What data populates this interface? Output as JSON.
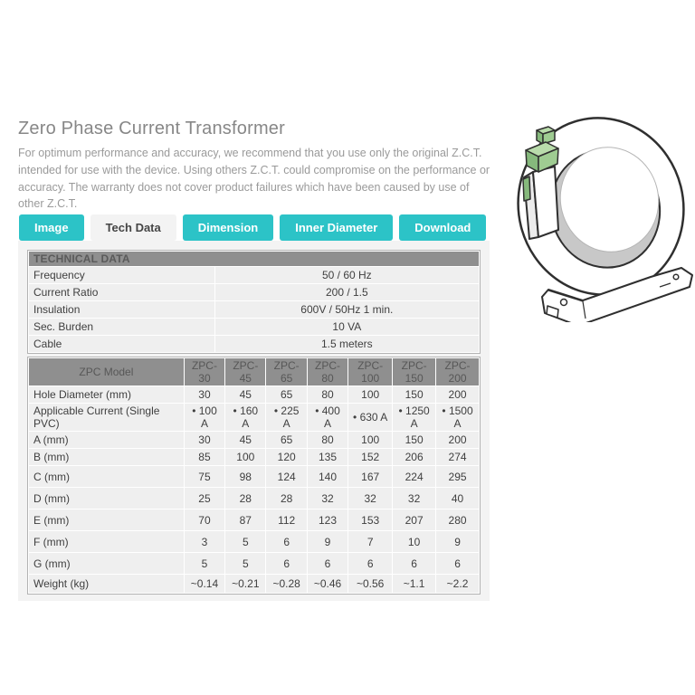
{
  "page": {
    "title": "Zero Phase Current Transformer",
    "description": "For optimum performance and accuracy, we recommend that you use only the original Z.C.T. intended for use with the device. Using others Z.C.T. could compromise on the performance or accuracy. The warranty does not cover product failures which have been caused by use of other Z.C.T."
  },
  "tabs": [
    {
      "label": "Image",
      "active": false
    },
    {
      "label": "Tech Data",
      "active": true
    },
    {
      "label": "Dimension",
      "active": false
    },
    {
      "label": "Inner Diameter",
      "active": false
    },
    {
      "label": "Download",
      "active": false
    }
  ],
  "tech_table": {
    "header": "TECHNICAL DATA",
    "rows": [
      {
        "label": "Frequency",
        "value": "50 / 60 Hz"
      },
      {
        "label": "Current Ratio",
        "value": "200 / 1.5"
      },
      {
        "label": "Insulation",
        "value": "600V / 50Hz 1 min."
      },
      {
        "label": "Sec. Burden",
        "value": "10 VA"
      },
      {
        "label": "Cable",
        "value": "1.5 meters"
      }
    ]
  },
  "model_table": {
    "header_label": "ZPC Model",
    "models": [
      "ZPC-30",
      "ZPC-45",
      "ZPC-65",
      "ZPC-80",
      "ZPC-100",
      "ZPC-150",
      "ZPC-200"
    ],
    "rows": [
      {
        "label": "Hole Diameter (mm)",
        "values": [
          "30",
          "45",
          "65",
          "80",
          "100",
          "150",
          "200"
        ]
      },
      {
        "label": "Applicable Current (Single PVC)",
        "values": [
          "• 100 A",
          "• 160 A",
          "• 225 A",
          "• 400 A",
          "• 630 A",
          "• 1250 A",
          "• 1500 A"
        ]
      },
      {
        "label": "A (mm)",
        "values": [
          "30",
          "45",
          "65",
          "80",
          "100",
          "150",
          "200"
        ]
      },
      {
        "label": "B (mm)",
        "values": [
          "85",
          "100",
          "120",
          "135",
          "152",
          "206",
          "274"
        ]
      },
      {
        "label": "C (mm)",
        "values": [
          "75",
          "98",
          "124",
          "140",
          "167",
          "224",
          "295"
        ]
      },
      {
        "label": "D (mm)",
        "values": [
          "25",
          "28",
          "28",
          "32",
          "32",
          "32",
          "40"
        ]
      },
      {
        "label": "E (mm)",
        "values": [
          "70",
          "87",
          "112",
          "123",
          "153",
          "207",
          "280"
        ]
      },
      {
        "label": "F (mm)",
        "values": [
          "3",
          "5",
          "6",
          "9",
          "7",
          "10",
          "9"
        ]
      },
      {
        "label": "G (mm)",
        "values": [
          "5",
          "5",
          "6",
          "6",
          "6",
          "6",
          "6"
        ]
      },
      {
        "label": "Weight (kg)",
        "values": [
          "~0.14",
          "~0.21",
          "~0.28",
          "~0.46",
          "~0.56",
          "~1.1",
          "~2.2"
        ]
      }
    ]
  },
  "illustration": {
    "name": "zero-phase-current-transformer-drawing",
    "terminal_color_top": "#b9dcab",
    "terminal_color_front": "#86b97c",
    "terminal_color_side": "#9fcc92"
  },
  "colors": {
    "accent_teal": "#2cc3c7",
    "panel_gray": "#f3f3f3",
    "table_header_gray": "#8f8f8f",
    "cell_gray": "#efefef"
  }
}
